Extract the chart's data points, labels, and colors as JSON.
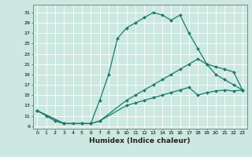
{
  "title": "",
  "xlabel": "Humidex (Indice chaleur)",
  "bg_color": "#cce8e0",
  "line_color": "#1a7a6e",
  "grid_color": "#ffffff",
  "xlim": [
    -0.5,
    23.5
  ],
  "ylim": [
    8.5,
    32.5
  ],
  "xticks": [
    0,
    1,
    2,
    3,
    4,
    5,
    6,
    7,
    8,
    9,
    10,
    11,
    12,
    13,
    14,
    15,
    16,
    17,
    18,
    19,
    20,
    21,
    22,
    23
  ],
  "yticks": [
    9,
    11,
    13,
    15,
    17,
    19,
    21,
    23,
    25,
    27,
    29,
    31
  ],
  "line1_x": [
    0,
    1,
    2,
    3,
    4,
    5,
    6,
    7,
    8,
    9,
    10,
    11,
    12,
    13,
    14,
    15,
    16,
    17,
    18,
    19,
    20,
    21,
    22,
    23
  ],
  "line1_y": [
    12,
    11,
    10,
    9.5,
    9.5,
    9.5,
    9.5,
    14,
    19,
    26,
    28,
    29,
    30,
    31,
    30.5,
    29.5,
    30.5,
    27,
    24,
    21,
    19,
    18,
    17,
    16
  ],
  "line2_x": [
    0,
    3,
    5,
    6,
    7,
    10,
    11,
    12,
    13,
    14,
    15,
    16,
    17,
    18,
    19,
    20,
    21,
    22,
    23
  ],
  "line2_y": [
    12,
    9.5,
    9.5,
    9.5,
    10,
    14,
    15,
    16,
    17,
    18,
    19,
    20,
    21,
    22,
    21,
    20.5,
    20,
    19.5,
    16
  ],
  "line3_x": [
    0,
    3,
    5,
    6,
    7,
    10,
    11,
    12,
    13,
    14,
    15,
    16,
    17,
    18,
    19,
    20,
    21,
    22,
    23
  ],
  "line3_y": [
    12,
    9.5,
    9.5,
    9.5,
    10,
    13,
    13.5,
    14,
    14.5,
    15,
    15.5,
    16,
    16.5,
    15,
    15.5,
    15.8,
    16,
    15.8,
    16
  ]
}
